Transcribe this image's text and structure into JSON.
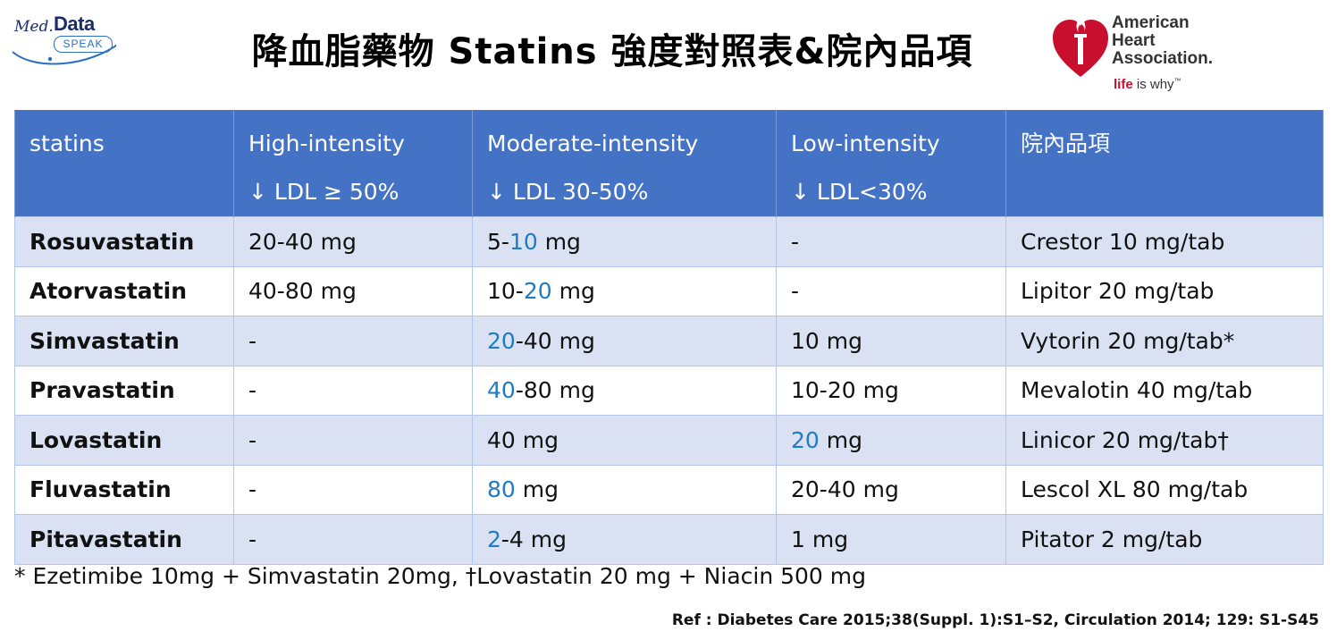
{
  "header": {
    "title": "降血脂藥物 Statins 強度對照表&院內品項",
    "logo_left": {
      "med": "Med.",
      "data": "Data",
      "speak": "SPEAK"
    },
    "logo_right": {
      "name_line1": "American",
      "name_line2": "Heart",
      "name_line3": "Association.",
      "tagline_a": "life",
      "tagline_b": " is why",
      "tm": "™"
    }
  },
  "table": {
    "headers": [
      {
        "main": "statins",
        "sub": ""
      },
      {
        "main": "High-intensity",
        "sub": "↓ LDL ≥ 50%"
      },
      {
        "main": "Moderate-intensity",
        "sub": "↓ LDL 30-50%"
      },
      {
        "main": "Low-intensity",
        "sub": "↓ LDL<30%"
      },
      {
        "main": "院內品項",
        "sub": ""
      }
    ],
    "rows": [
      {
        "name": "Rosuvastatin",
        "high": "20-40 mg",
        "mod_a": "5-",
        "mod_h": "10",
        "mod_b": " mg",
        "low_a": "",
        "low_h": "",
        "low_b": "-",
        "product": "Crestor 10 mg/tab"
      },
      {
        "name": "Atorvastatin",
        "high": "40-80 mg",
        "mod_a": "10-",
        "mod_h": "20",
        "mod_b": " mg",
        "low_a": "",
        "low_h": "",
        "low_b": "-",
        "product": "Lipitor 20 mg/tab"
      },
      {
        "name": "Simvastatin",
        "high": "-",
        "mod_a": "",
        "mod_h": "20",
        "mod_b": "-40 mg",
        "low_a": "",
        "low_h": "",
        "low_b": "10 mg",
        "product": "Vytorin 20 mg/tab*"
      },
      {
        "name": "Pravastatin",
        "high": "-",
        "mod_a": "",
        "mod_h": "40",
        "mod_b": "-80 mg",
        "low_a": "",
        "low_h": "",
        "low_b": "10-20 mg",
        "product": "Mevalotin 40 mg/tab"
      },
      {
        "name": "Lovastatin",
        "high": "-",
        "mod_a": "40 mg",
        "mod_h": "",
        "mod_b": "",
        "low_a": "",
        "low_h": "20",
        "low_b": " mg",
        "product": "Linicor 20 mg/tab†"
      },
      {
        "name": "Fluvastatin",
        "high": "-",
        "mod_a": "",
        "mod_h": "80",
        "mod_b": " mg",
        "low_a": "",
        "low_h": "",
        "low_b": "20-40 mg",
        "product": "Lescol XL 80 mg/tab"
      },
      {
        "name": "Pitavastatin",
        "high": "-",
        "mod_a": "",
        "mod_h": "2",
        "mod_b": "-4 mg",
        "low_a": "",
        "low_h": "",
        "low_b": "1 mg",
        "product": "Pitator 2 mg/tab"
      }
    ]
  },
  "footnote": "* Ezetimibe 10mg + Simvastatin 20mg,  †Lovastatin 20 mg + Niacin 500 mg",
  "reference": "Ref : Diabetes Care 2015;38(Suppl. 1):S1–S2,  Circulation 2014; 129: S1-S45",
  "colors": {
    "header_bg": "#4472c4",
    "row_alt": "#d9e1f2",
    "highlight": "#1f7bc4",
    "aha_red": "#c8102e"
  }
}
